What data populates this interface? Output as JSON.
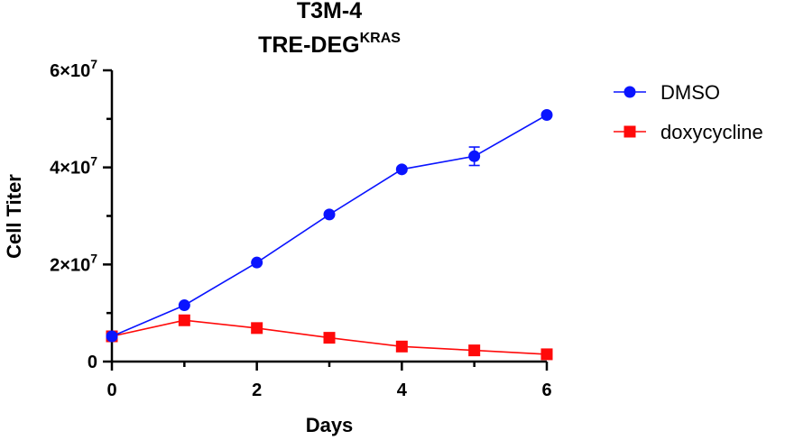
{
  "chart_data": {
    "type": "line",
    "title": "T3M-4",
    "subtitle": "TRE-DEG",
    "subtitle_superscript": "KRAS",
    "xlabel": "Days",
    "ylabel": "Cell Titer",
    "xlim": [
      0,
      6
    ],
    "ylim": [
      0,
      60000000
    ],
    "x_ticks": [
      {
        "value": 0,
        "label": "0"
      },
      {
        "value": 2,
        "label": "2"
      },
      {
        "value": 4,
        "label": "4"
      },
      {
        "value": 6,
        "label": "6"
      }
    ],
    "y_ticks": [
      {
        "value": 0,
        "mantissa": "0",
        "exponent": ""
      },
      {
        "value": 20000000,
        "mantissa": "2×10",
        "exponent": "7"
      },
      {
        "value": 40000000,
        "mantissa": "4×10",
        "exponent": "7"
      },
      {
        "value": 60000000,
        "mantissa": "6×10",
        "exponent": "7"
      }
    ],
    "grid": false,
    "legend_position": "top-right",
    "series": [
      {
        "name": "DMSO",
        "color": "#0a14ff",
        "marker": "circle",
        "x": [
          0,
          1,
          2,
          3,
          4,
          5,
          6
        ],
        "y": [
          5200000,
          11600000,
          20400000,
          30300000,
          39600000,
          42300000,
          50800000
        ],
        "error": [
          0,
          0,
          0,
          0,
          0,
          1900000,
          0
        ]
      },
      {
        "name": "doxycycline",
        "color": "#ff0a0a",
        "marker": "square",
        "x": [
          0,
          1,
          2,
          3,
          4,
          5,
          6
        ],
        "y": [
          5200000,
          8500000,
          6900000,
          4900000,
          3100000,
          2300000,
          1500000
        ],
        "error": [
          0,
          0,
          0,
          0,
          0,
          0,
          0
        ]
      }
    ]
  }
}
